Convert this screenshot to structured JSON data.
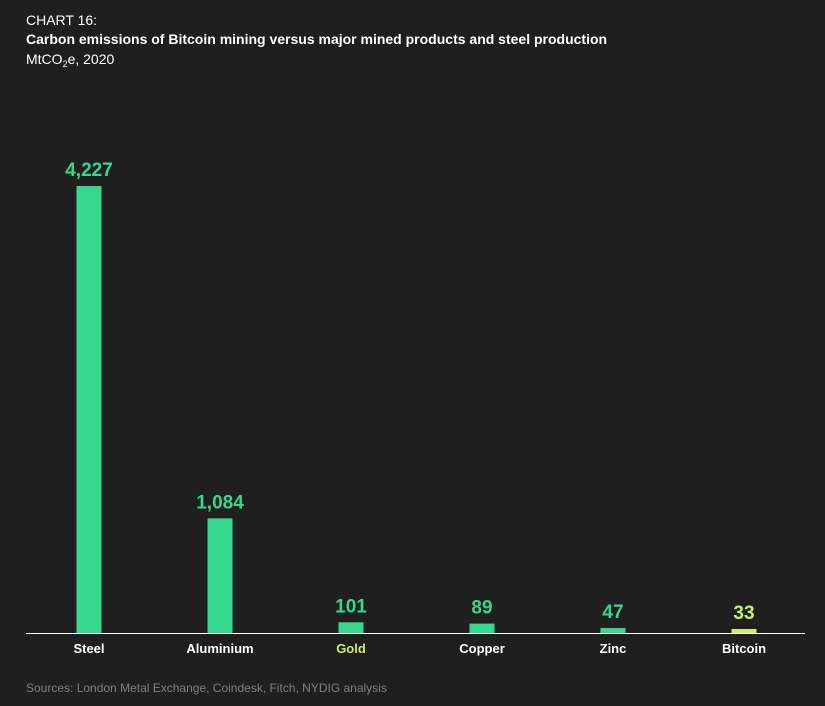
{
  "header": {
    "chart_number": "CHART 16:",
    "title": "Carbon emissions of Bitcoin mining versus major mined products and steel production",
    "unit_prefix": "MtCO",
    "unit_sub": "2",
    "unit_suffix": "e, 2020"
  },
  "chart_data": {
    "type": "bar",
    "title": "Carbon emissions of Bitcoin mining versus major mined products and steel production",
    "subtitle": "MtCO2e, 2020",
    "xlabel": "",
    "ylabel": "",
    "ylim": [
      0,
      4227
    ],
    "grid": false,
    "categories": [
      "Steel",
      "Aluminium",
      "Gold",
      "Copper",
      "Zinc",
      "Bitcoin"
    ],
    "values": [
      4227,
      1084,
      101,
      89,
      47,
      33
    ],
    "value_labels": [
      "4,227",
      "1,084",
      "101",
      "89",
      "47",
      "33"
    ],
    "bar_colors": [
      "#35d88c",
      "#35d88c",
      "#35d88c",
      "#35d88c",
      "#35d88c",
      "#c8f06e"
    ],
    "value_label_colors": [
      "#35d88c",
      "#35d88c",
      "#35d88c",
      "#35d88c",
      "#35d88c",
      "#c8f06e"
    ],
    "category_label_colors": [
      "#ffffff",
      "#ffffff",
      "#c8f06e",
      "#ffffff",
      "#ffffff",
      "#ffffff"
    ]
  },
  "footer": {
    "source": "Sources: London Metal Exchange, Coindesk, Fitch, NYDIG analysis"
  }
}
